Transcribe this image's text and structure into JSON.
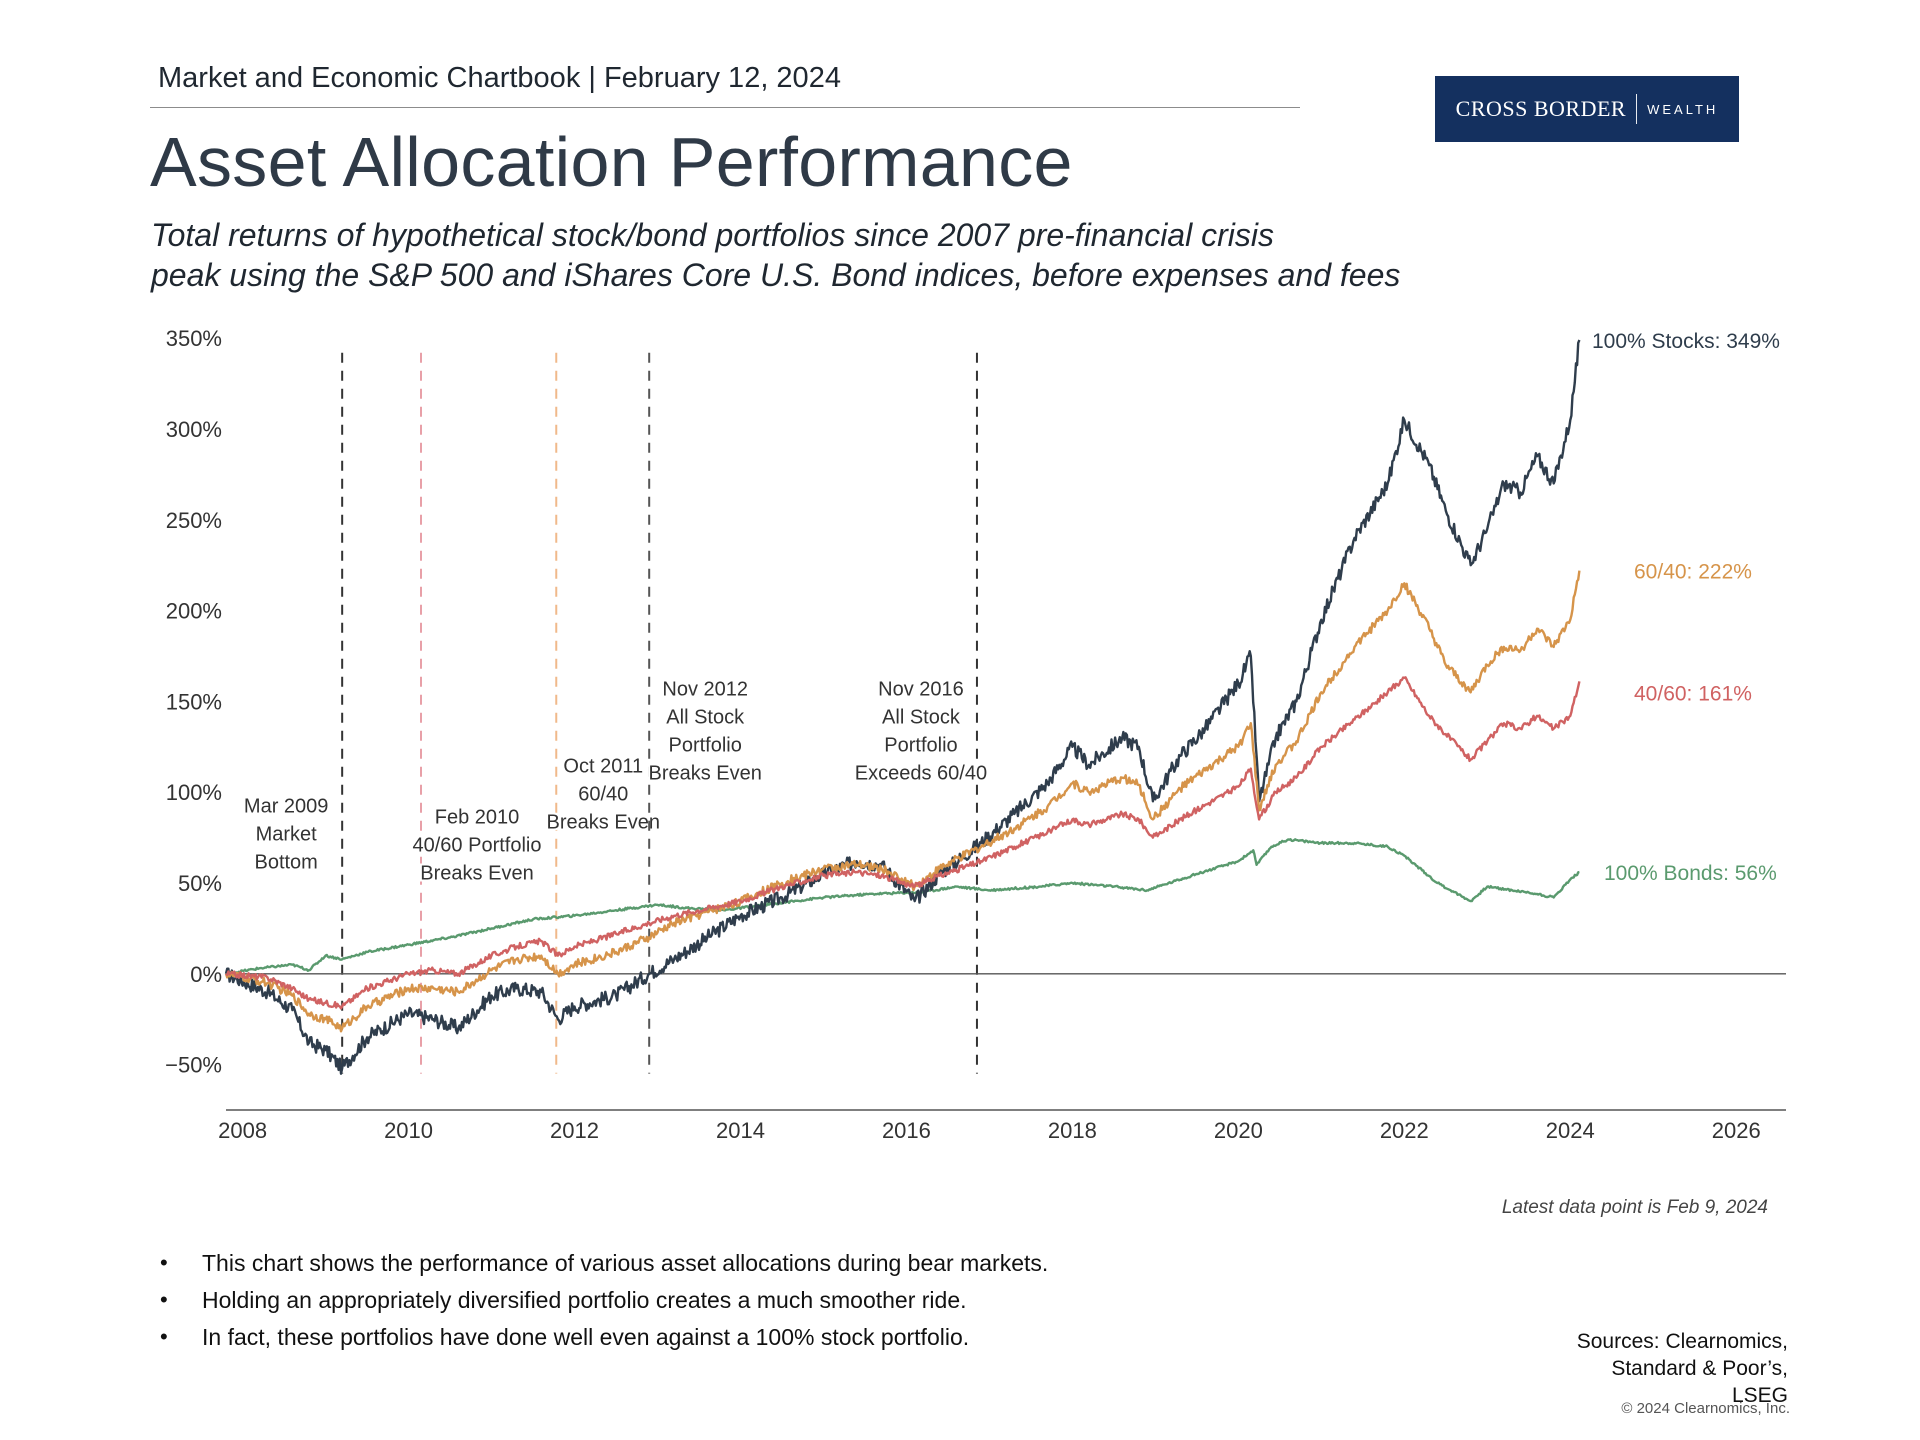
{
  "header": {
    "chartbook": "Market and Economic Chartbook | February 12, 2024",
    "logo_primary": "CROSS BORDER",
    "logo_secondary": "WEALTH",
    "title": "Asset Allocation Performance",
    "subtitle_line1": "Total returns of hypothetical stock/bond portfolios since 2007 pre-financial crisis",
    "subtitle_line2": "peak using the S&P 500 and iShares Core U.S. Bond indices, before expenses and fees"
  },
  "chart_data": {
    "type": "line",
    "title": "Asset Allocation Performance",
    "xlabel": "",
    "ylabel": "",
    "xlim": [
      2007.8,
      2026.6
    ],
    "ylim": [
      -75,
      360
    ],
    "x_ticks": [
      "2008",
      "2010",
      "2012",
      "2014",
      "2016",
      "2018",
      "2020",
      "2022",
      "2024",
      "2026"
    ],
    "y_ticks": [
      "350%",
      "300%",
      "250%",
      "200%",
      "150%",
      "100%",
      "50%",
      "0%",
      "−50%"
    ],
    "series": [
      {
        "name": "100% Stocks",
        "end_label": "100% Stocks: 349%",
        "color": "#2f3d4c",
        "x": [
          2007.8,
          2008.3,
          2008.6,
          2008.8,
          2009.0,
          2009.2,
          2009.5,
          2010.0,
          2010.3,
          2010.6,
          2011.0,
          2011.3,
          2011.6,
          2011.8,
          2012.0,
          2012.5,
          2012.9,
          2013.2,
          2013.6,
          2014.0,
          2014.5,
          2015.0,
          2015.4,
          2015.7,
          2016.1,
          2016.4,
          2016.9,
          2017.3,
          2017.7,
          2018.0,
          2018.2,
          2018.6,
          2018.8,
          2018.97,
          2019.3,
          2019.6,
          2020.0,
          2020.15,
          2020.25,
          2020.45,
          2020.7,
          2021.0,
          2021.4,
          2021.8,
          2022.0,
          2022.3,
          2022.5,
          2022.8,
          2023.0,
          2023.2,
          2023.4,
          2023.6,
          2023.8,
          2024.0,
          2024.11
        ],
        "values": [
          0,
          -10,
          -20,
          -38,
          -42,
          -52,
          -35,
          -22,
          -25,
          -30,
          -12,
          -8,
          -10,
          -25,
          -18,
          -12,
          0,
          8,
          20,
          32,
          42,
          55,
          62,
          60,
          40,
          55,
          72,
          88,
          105,
          125,
          115,
          130,
          125,
          95,
          120,
          135,
          160,
          175,
          95,
          130,
          150,
          195,
          240,
          270,
          305,
          280,
          255,
          225,
          245,
          270,
          265,
          285,
          270,
          305,
          349
        ]
      },
      {
        "name": "60/40",
        "end_label": "60/40: 222%",
        "color": "#d6944a",
        "x": [
          2007.8,
          2008.3,
          2008.6,
          2008.8,
          2009.0,
          2009.2,
          2009.5,
          2010.0,
          2010.3,
          2010.6,
          2011.0,
          2011.3,
          2011.6,
          2011.8,
          2012.0,
          2012.5,
          2012.9,
          2013.2,
          2013.6,
          2014.0,
          2014.5,
          2015.0,
          2015.4,
          2015.7,
          2016.1,
          2016.4,
          2016.9,
          2017.3,
          2017.7,
          2018.0,
          2018.2,
          2018.6,
          2018.8,
          2018.97,
          2019.3,
          2019.6,
          2020.0,
          2020.15,
          2020.25,
          2020.45,
          2020.7,
          2021.0,
          2021.4,
          2021.8,
          2022.0,
          2022.3,
          2022.5,
          2022.8,
          2023.0,
          2023.2,
          2023.4,
          2023.6,
          2023.8,
          2024.0,
          2024.11
        ],
        "values": [
          0,
          -5,
          -12,
          -22,
          -25,
          -30,
          -18,
          -8,
          -8,
          -10,
          2,
          8,
          10,
          0,
          5,
          12,
          20,
          28,
          34,
          40,
          50,
          58,
          60,
          58,
          48,
          58,
          70,
          80,
          92,
          105,
          100,
          108,
          104,
          85,
          102,
          112,
          125,
          138,
          90,
          115,
          128,
          155,
          180,
          200,
          215,
          190,
          170,
          155,
          170,
          180,
          178,
          190,
          180,
          195,
          222
        ]
      },
      {
        "name": "40/60",
        "end_label": "40/60: 161%",
        "color": "#d06262",
        "x": [
          2007.8,
          2008.3,
          2008.6,
          2008.8,
          2009.0,
          2009.2,
          2009.5,
          2010.0,
          2010.3,
          2010.6,
          2011.0,
          2011.3,
          2011.6,
          2011.8,
          2012.0,
          2012.5,
          2012.9,
          2013.2,
          2013.6,
          2014.0,
          2014.5,
          2015.0,
          2015.4,
          2015.7,
          2016.1,
          2016.4,
          2016.9,
          2017.3,
          2017.7,
          2018.0,
          2018.2,
          2018.6,
          2018.8,
          2018.97,
          2019.3,
          2019.6,
          2020.0,
          2020.15,
          2020.25,
          2020.45,
          2020.7,
          2021.0,
          2021.4,
          2021.8,
          2022.0,
          2022.3,
          2022.5,
          2022.8,
          2023.0,
          2023.2,
          2023.4,
          2023.6,
          2023.8,
          2024.0,
          2024.11
        ],
        "values": [
          0,
          -2,
          -8,
          -14,
          -16,
          -18,
          -8,
          0,
          2,
          0,
          10,
          15,
          18,
          10,
          15,
          22,
          28,
          32,
          36,
          40,
          48,
          54,
          56,
          54,
          48,
          54,
          62,
          70,
          78,
          85,
          82,
          88,
          85,
          75,
          85,
          93,
          103,
          113,
          85,
          100,
          108,
          125,
          140,
          155,
          163,
          142,
          132,
          118,
          128,
          138,
          135,
          142,
          135,
          142,
          161
        ]
      },
      {
        "name": "100% Bonds",
        "end_label": "100% Bonds: 56%",
        "color": "#5a9a6e",
        "x": [
          2007.8,
          2008.2,
          2008.6,
          2008.8,
          2009.0,
          2009.2,
          2009.5,
          2010.0,
          2010.5,
          2011.0,
          2011.5,
          2012.0,
          2012.5,
          2013.0,
          2013.4,
          2013.8,
          2014.3,
          2015.0,
          2015.6,
          2016.2,
          2016.6,
          2017.0,
          2017.6,
          2018.0,
          2018.5,
          2018.9,
          2019.5,
          2020.0,
          2020.18,
          2020.22,
          2020.4,
          2020.6,
          2021.0,
          2021.4,
          2021.8,
          2022.0,
          2022.4,
          2022.6,
          2022.8,
          2023.0,
          2023.3,
          2023.6,
          2023.8,
          2024.0,
          2024.11
        ],
        "values": [
          0,
          3,
          5,
          2,
          10,
          8,
          12,
          16,
          20,
          25,
          30,
          32,
          35,
          38,
          36,
          35,
          38,
          42,
          44,
          45,
          48,
          46,
          48,
          50,
          48,
          46,
          55,
          62,
          68,
          60,
          70,
          74,
          72,
          72,
          70,
          65,
          50,
          45,
          40,
          48,
          46,
          44,
          42,
          52,
          56
        ]
      }
    ],
    "event_lines": [
      {
        "x": 2009.2,
        "color": "#333333",
        "label": [
          "Mar 2009",
          "Market",
          "Bottom"
        ]
      },
      {
        "x": 2010.15,
        "color": "#e8a0a8",
        "label": [
          "Feb 2010",
          "40/60 Portfolio",
          "Breaks Even"
        ]
      },
      {
        "x": 2011.78,
        "color": "#f0b98a",
        "label": [
          "Oct 2011",
          "60/40",
          "Breaks Even"
        ]
      },
      {
        "x": 2012.9,
        "color": "#555555",
        "label": [
          "Nov 2012",
          "All Stock",
          "Portfolio",
          "Breaks Even"
        ]
      },
      {
        "x": 2016.85,
        "color": "#333333",
        "label": [
          "Nov 2016",
          "All Stock",
          "Portfolio",
          "Exceeds 60/40"
        ]
      }
    ],
    "grid": false,
    "legend": "end-of-line labels"
  },
  "footer": {
    "latest": "Latest data point is Feb 9, 2024",
    "bullets": [
      "This chart shows the performance of various asset allocations during bear markets.",
      "Holding an appropriately diversified portfolio creates a much smoother ride.",
      "In fact, these portfolios have done well even against a 100% stock portfolio."
    ],
    "bullet_glyph": "•",
    "sources_line1": "Sources: Clearnomics,",
    "sources_line2": "Standard & Poor’s,",
    "sources_line3": "LSEG",
    "copyright": "© 2024 Clearnomics, Inc."
  }
}
